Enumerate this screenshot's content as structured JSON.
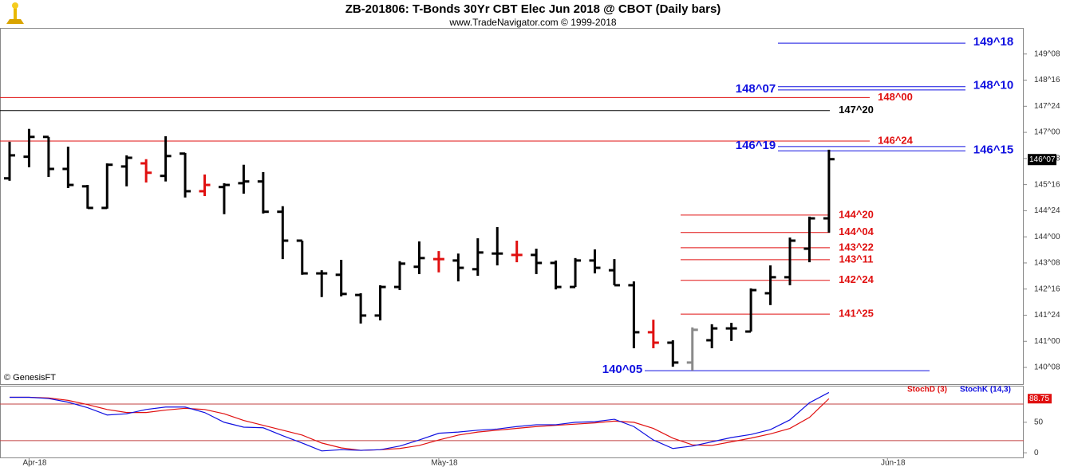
{
  "chart_data": [
    {
      "type": "ohlc",
      "title": "ZB-201806:  T-Bonds 30Yr CBT Elec Jun 2018 @ CBOT  (Daily bars)",
      "subtitle": "www.TradeNavigator.com © 1999-2018",
      "watermark": "© GenesisFT",
      "categories": [
        null,
        "Apr-18",
        null,
        null,
        null,
        null,
        null,
        null,
        null,
        null,
        null,
        null,
        null,
        null,
        null,
        null,
        null,
        null,
        null,
        null,
        null,
        null,
        "May-18",
        null,
        null,
        null,
        null,
        null,
        null,
        null,
        null,
        null,
        null,
        null,
        null,
        null,
        null,
        null,
        null,
        null,
        null,
        null,
        null,
        null,
        null,
        "Jun-18",
        null,
        null,
        null,
        null,
        null,
        null
      ],
      "open": [
        145.68,
        146.3,
        146.87,
        145.95,
        145.45,
        144.83,
        146.02,
        146.11,
        145.75,
        146.39,
        145.31,
        145.43,
        145.54,
        145.59,
        144.72,
        143.89,
        142.95,
        142.91,
        142.33,
        141.74,
        142.56,
        143.14,
        143.36,
        143.32,
        143.07,
        143.52,
        143.48,
        143.48,
        143.25,
        142.56,
        143.32,
        143.04,
        142.61,
        141.26,
        140.96,
        140.39,
        141.03,
        141.37,
        141.28,
        142.38,
        142.84,
        143.66,
        144.53,
        null,
        null,
        null,
        null,
        null,
        null,
        null,
        null,
        null
      ],
      "high": [
        146.73,
        147.1,
        146.87,
        146.59,
        145.49,
        146.11,
        146.34,
        146.23,
        146.89,
        146.41,
        145.79,
        145.54,
        146.07,
        145.86,
        144.88,
        143.89,
        143.04,
        143.34,
        142.38,
        142.61,
        143.3,
        143.87,
        143.59,
        143.52,
        143.96,
        144.28,
        143.89,
        143.66,
        143.32,
        143.39,
        143.64,
        143.36,
        142.72,
        141.62,
        141.03,
        141.4,
        141.49,
        141.53,
        142.52,
        143.18,
        143.98,
        144.58,
        146.5,
        null,
        null,
        null,
        null,
        null,
        null,
        null,
        null,
        null
      ],
      "low": [
        145.61,
        146.0,
        145.72,
        145.4,
        144.81,
        144.81,
        145.45,
        145.56,
        145.59,
        145.13,
        145.17,
        144.65,
        145.24,
        144.67,
        143.36,
        142.91,
        142.27,
        142.29,
        141.51,
        141.6,
        142.47,
        142.93,
        142.98,
        142.72,
        142.88,
        143.18,
        143.27,
        142.93,
        142.49,
        142.56,
        142.95,
        142.61,
        140.8,
        140.8,
        140.27,
        140.16,
        140.8,
        141.01,
        141.28,
        142.04,
        142.61,
        143.27,
        144.12,
        null,
        null,
        null,
        null,
        null,
        null,
        null,
        null,
        null
      ],
      "close": [
        146.34,
        146.87,
        145.95,
        145.49,
        144.83,
        146.07,
        146.27,
        145.84,
        146.32,
        145.31,
        145.49,
        145.49,
        145.59,
        144.72,
        143.89,
        142.95,
        142.95,
        142.36,
        141.74,
        142.56,
        143.23,
        143.39,
        143.36,
        143.11,
        143.55,
        143.52,
        143.48,
        143.25,
        142.56,
        143.32,
        143.11,
        142.61,
        141.26,
        140.96,
        140.39,
        141.33,
        141.37,
        141.37,
        142.47,
        142.84,
        143.89,
        144.53,
        146.23,
        null,
        null,
        null,
        null,
        null,
        null,
        null,
        null,
        null
      ],
      "colors": [
        "#000000",
        "#000000",
        "#000000",
        "#000000",
        "#000000",
        "#000000",
        "#000000",
        "#e01010",
        "#000000",
        "#000000",
        "#e01010",
        "#000000",
        "#000000",
        "#000000",
        "#000000",
        "#000000",
        "#000000",
        "#000000",
        "#000000",
        "#000000",
        "#000000",
        "#000000",
        "#e01010",
        "#000000",
        "#000000",
        "#000000",
        "#e01010",
        "#000000",
        "#000000",
        "#000000",
        "#000000",
        "#000000",
        "#000000",
        "#e01010",
        "#000000",
        "#8a8a8a",
        "#000000",
        "#000000",
        "#000000",
        "#000000",
        "#000000",
        "#000000",
        "#000000",
        null,
        null,
        null,
        null,
        null,
        null,
        null,
        null,
        null
      ],
      "ylim": [
        139.77,
        150.0
      ],
      "yticks": [
        {
          "value": 140.25,
          "label": "140^08"
        },
        {
          "value": 141.0,
          "label": "141^00"
        },
        {
          "value": 141.75,
          "label": "141^24"
        },
        {
          "value": 142.5,
          "label": "142^16"
        },
        {
          "value": 143.25,
          "label": "143^08"
        },
        {
          "value": 144.0,
          "label": "144^00"
        },
        {
          "value": 144.75,
          "label": "144^24"
        },
        {
          "value": 145.5,
          "label": "145^16"
        },
        {
          "value": 146.25,
          "label": "146^08"
        },
        {
          "value": 147.0,
          "label": "147^00"
        },
        {
          "value": 147.75,
          "label": "147^24"
        },
        {
          "value": 148.5,
          "label": "148^16"
        },
        {
          "value": 149.25,
          "label": "149^08"
        }
      ],
      "last": {
        "value": 146.21875,
        "label": "146^07"
      },
      "levels": [
        {
          "value": 149.5625,
          "label": "149^18",
          "color": "#1010e0"
        },
        {
          "value": 148.3125,
          "label": "148^10",
          "color": "#1010e0"
        },
        {
          "value": 148.21875,
          "label": "148^07",
          "color": "#1010e0"
        },
        {
          "value": 148.0,
          "label": "148^00",
          "color": "#e01010"
        },
        {
          "value": 147.625,
          "label": "147^20",
          "color": "#000000"
        },
        {
          "value": 146.75,
          "label": "146^24",
          "color": "#e01010"
        },
        {
          "value": 146.59375,
          "label": "146^19",
          "color": "#1010e0"
        },
        {
          "value": 146.46875,
          "label": "146^15",
          "color": "#1010e0"
        },
        {
          "value": 144.625,
          "label": "144^20",
          "color": "#e01010"
        },
        {
          "value": 144.125,
          "label": "144^04",
          "color": "#e01010"
        },
        {
          "value": 143.6875,
          "label": "143^22",
          "color": "#e01010"
        },
        {
          "value": 143.34375,
          "label": "143^11",
          "color": "#e01010"
        },
        {
          "value": 142.75,
          "label": "142^24",
          "color": "#e01010"
        },
        {
          "value": 141.78125,
          "label": "141^25",
          "color": "#e01010"
        },
        {
          "value": 140.15625,
          "label": "140^05",
          "color": "#1010e0"
        }
      ]
    },
    {
      "type": "line",
      "series": [
        {
          "name": "StochD (3)",
          "color": "#e01010",
          "values": [
            91,
            91,
            90,
            86,
            79,
            71,
            66,
            66,
            70,
            73,
            71,
            64,
            53,
            45,
            37,
            29,
            16,
            8,
            4,
            5,
            7,
            12,
            21,
            29,
            34,
            37,
            40,
            43,
            45,
            47,
            49,
            52,
            50,
            40,
            24,
            13,
            12,
            18,
            24,
            31,
            40,
            58,
            88.75,
            null,
            null,
            null,
            null,
            null,
            null,
            null,
            null,
            null
          ],
          "last_label": "88.75"
        },
        {
          "name": "StochK (14,3)",
          "color": "#1010e0",
          "values": [
            91,
            91,
            89,
            83,
            74,
            62,
            64,
            71,
            75,
            75,
            66,
            50,
            42,
            41,
            28,
            16,
            3,
            5,
            4,
            5,
            11,
            21,
            32,
            34,
            37,
            39,
            43,
            46,
            46,
            50,
            51,
            55,
            43,
            21,
            7,
            11,
            18,
            25,
            30,
            38,
            54,
            82,
            99,
            null,
            null,
            null,
            null,
            null,
            null,
            null,
            null,
            null
          ]
        }
      ],
      "levels": [
        20,
        80
      ],
      "ylim": [
        -9,
        110
      ],
      "yticks": [
        0,
        50
      ]
    }
  ]
}
